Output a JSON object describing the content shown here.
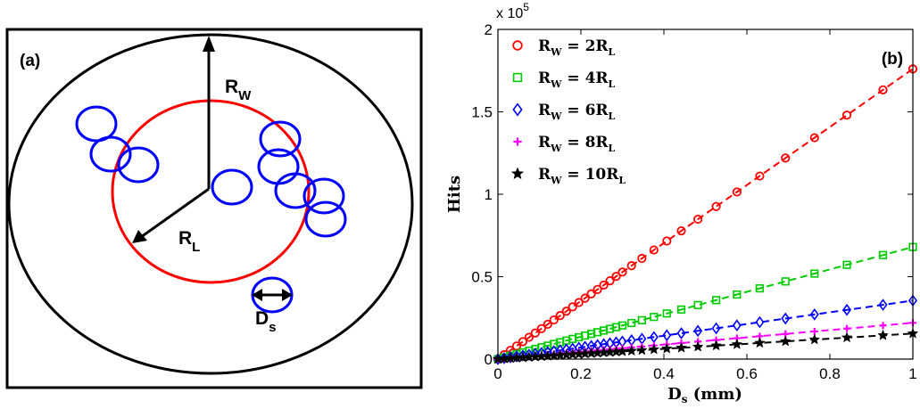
{
  "panel_a": {
    "label": "(a)",
    "rw_label": "R",
    "rw_sub": "W",
    "rl_label": "R",
    "rl_sub": "L",
    "ds_label": "D",
    "ds_sub": "s"
  },
  "chart_data": {
    "type": "line",
    "panel_label": "(b)",
    "xlabel_main": "D",
    "xlabel_sub": "s",
    "xlabel_unit": " (mm)",
    "ylabel": "Hits",
    "y_multiplier_base": "x 10",
    "y_multiplier_exp": "5",
    "xlim": [
      0,
      1
    ],
    "ylim": [
      0,
      2
    ],
    "xticks": [
      "0",
      "0.2",
      "0.4",
      "0.6",
      "0.8",
      "1"
    ],
    "yticks": [
      "0",
      "0.5",
      "1",
      "1.5",
      "2"
    ],
    "legend_position": "top-left",
    "colors": {
      "s1": "#ff0000",
      "s2": "#00cc00",
      "s3": "#0000ff",
      "s4": "#ff00ff",
      "s5": "#000000",
      "circles": "#0000ff",
      "inner_circle": "#ff0000"
    },
    "series": [
      {
        "key": "s1",
        "name_main": "R",
        "name_sub1": "W",
        "name_mid": " = 2R",
        "name_sub2": "L",
        "marker": "circle",
        "slope": 1.76
      },
      {
        "key": "s2",
        "name_main": "R",
        "name_sub1": "W",
        "name_mid": " = 4R",
        "name_sub2": "L",
        "marker": "square",
        "slope": 0.68
      },
      {
        "key": "s3",
        "name_main": "R",
        "name_sub1": "W",
        "name_mid": " = 6R",
        "name_sub2": "L",
        "marker": "diamond",
        "slope": 0.355
      },
      {
        "key": "s4",
        "name_main": "R",
        "name_sub1": "W",
        "name_mid": " = 8R",
        "name_sub2": "L",
        "marker": "plus",
        "slope": 0.22
      },
      {
        "key": "s5",
        "name_main": "R",
        "name_sub1": "W",
        "name_mid": " = 10R",
        "name_sub2": "L",
        "marker": "star",
        "slope": 0.155
      }
    ]
  }
}
